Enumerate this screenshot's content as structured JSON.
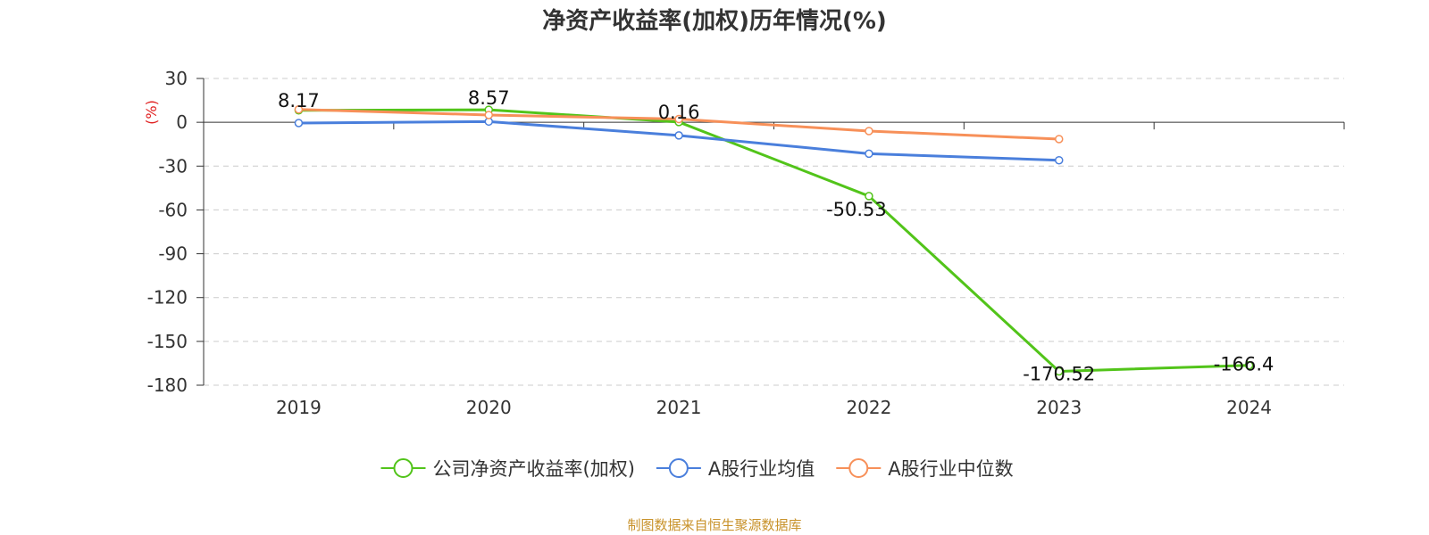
{
  "chart_data": {
    "type": "line",
    "title": "净资产收益率(加权)历年情况(%)",
    "ylabel": "(%)",
    "xlabel": "",
    "categories": [
      "2019",
      "2020",
      "2021",
      "2022",
      "2023",
      "2024"
    ],
    "ylim": [
      -180,
      30
    ],
    "yticks": [
      30,
      0,
      -30,
      -60,
      -90,
      -120,
      -150,
      -180
    ],
    "grid": true,
    "legend_position": "bottom",
    "series": [
      {
        "name": "公司净资产收益率(加权)",
        "color": "#52c41a",
        "values": [
          8.17,
          8.57,
          0.16,
          -50.53,
          -170.52,
          -166.4
        ],
        "labels": [
          "8.17",
          "8.57",
          "0.16",
          "-50.53",
          "-170.52",
          "-166.4"
        ]
      },
      {
        "name": "A股行业均值",
        "color": "#4a7fdc",
        "values": [
          -0.5,
          0.5,
          -9.0,
          -21.5,
          -26.0,
          null
        ]
      },
      {
        "name": "A股行业中位数",
        "color": "#f79059",
        "values": [
          8.8,
          5.0,
          2.2,
          -6.0,
          -11.5,
          null
        ]
      }
    ]
  },
  "source_note": "制图数据来自恒生聚源数据库"
}
